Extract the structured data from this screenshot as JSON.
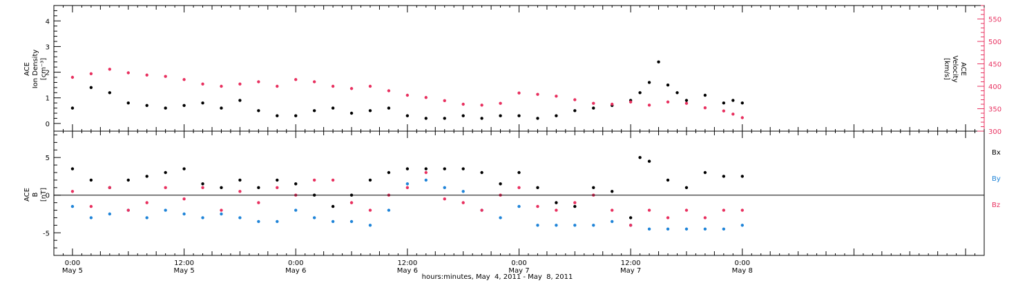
{
  "colors": {
    "black": "#000000",
    "pink": "#e8305f",
    "blue": "#1f84d8",
    "background": "#ffffff"
  },
  "x_axis": {
    "title": "hours:minutes, May  4, 2011 - May  8, 2011",
    "range_hours": [
      -2,
      98
    ],
    "ticks": [
      {
        "h": 0,
        "time": "0:00",
        "date": "May 5"
      },
      {
        "h": 12,
        "time": "12:00",
        "date": "May 5"
      },
      {
        "h": 24,
        "time": "0:00",
        "date": "May 6"
      },
      {
        "h": 36,
        "time": "12:00",
        "date": "May 6"
      },
      {
        "h": 48,
        "time": "0:00",
        "date": "May 7"
      },
      {
        "h": 60,
        "time": "12:00",
        "date": "May 7"
      },
      {
        "h": 72,
        "time": "0:00",
        "date": "May 8"
      }
    ]
  },
  "top_panel": {
    "ylabel_line1": "ACE",
    "ylabel_line2": "Ion Density",
    "ylabel_unit": "[cm⁻³]",
    "right_label_line1": "ACE",
    "right_label_line2": "Velocity",
    "right_label_unit": "[km/s]"
  },
  "bottom_panel": {
    "ylabel_line1": "ACE",
    "ylabel_line2": "B",
    "ylabel_unit": "[nT]",
    "legend": [
      {
        "label": "Bx",
        "color": "#000000"
      },
      {
        "label": "By",
        "color": "#1f84d8"
      },
      {
        "label": "Bz",
        "color": "#e8305f"
      }
    ]
  },
  "chart_data": [
    {
      "type": "scatter",
      "title": "",
      "xlabel": "hours:minutes, May  4, 2011 - May  8, 2011",
      "ylabel": "ACE Ion Density [cm⁻³]",
      "y2label": "ACE Velocity [km/s]",
      "xlim": [
        -2,
        98
      ],
      "ylim": [
        -0.3,
        4.6
      ],
      "y2lim": [
        300,
        580
      ],
      "y_ticks": [
        0,
        1,
        2,
        3,
        4
      ],
      "y2_ticks": [
        300,
        350,
        400,
        450,
        500,
        550
      ],
      "series": [
        {
          "name": "Ion Density",
          "axis": "left",
          "color": "#000000",
          "x": [
            0,
            2,
            4,
            6,
            8,
            10,
            12,
            14,
            16,
            18,
            20,
            22,
            24,
            26,
            28,
            30,
            32,
            34,
            36,
            38,
            40,
            42,
            44,
            46,
            48,
            50,
            52,
            54,
            56,
            58,
            60,
            61,
            62,
            63,
            64,
            65,
            66,
            68,
            70,
            71,
            72
          ],
          "y": [
            0.6,
            1.4,
            1.2,
            0.8,
            0.7,
            0.6,
            0.7,
            0.8,
            0.6,
            0.9,
            0.5,
            0.3,
            0.3,
            0.5,
            0.6,
            0.4,
            0.5,
            0.6,
            0.3,
            0.2,
            0.2,
            0.3,
            0.2,
            0.3,
            0.3,
            0.2,
            0.3,
            0.5,
            0.6,
            0.7,
            0.9,
            1.2,
            1.6,
            2.4,
            1.5,
            1.2,
            0.9,
            1.1,
            0.8,
            0.9,
            0.8
          ]
        },
        {
          "name": "Velocity",
          "axis": "right",
          "color": "#e8305f",
          "x": [
            0,
            2,
            4,
            6,
            8,
            10,
            12,
            14,
            16,
            18,
            20,
            22,
            24,
            26,
            28,
            30,
            32,
            34,
            36,
            38,
            40,
            42,
            44,
            46,
            48,
            50,
            52,
            54,
            56,
            58,
            60,
            62,
            64,
            66,
            68,
            70,
            71,
            72
          ],
          "y": [
            420,
            428,
            438,
            430,
            425,
            422,
            415,
            405,
            400,
            405,
            410,
            400,
            415,
            410,
            400,
            395,
            400,
            390,
            380,
            375,
            368,
            360,
            358,
            362,
            385,
            382,
            378,
            370,
            362,
            360,
            365,
            358,
            365,
            362,
            352,
            345,
            338,
            330
          ]
        }
      ]
    },
    {
      "type": "scatter",
      "title": "",
      "xlabel": "hours:minutes, May  4, 2011 - May  8, 2011",
      "ylabel": "ACE B [nT]",
      "xlim": [
        -2,
        98
      ],
      "ylim": [
        -8,
        8.5
      ],
      "y_ticks": [
        -5,
        0,
        5
      ],
      "series": [
        {
          "name": "Bx",
          "color": "#000000",
          "x": [
            0,
            2,
            4,
            6,
            8,
            10,
            12,
            14,
            16,
            18,
            20,
            22,
            24,
            26,
            28,
            30,
            32,
            34,
            36,
            38,
            40,
            42,
            44,
            46,
            48,
            50,
            52,
            54,
            56,
            58,
            60,
            61,
            62,
            64,
            66,
            68,
            70,
            72
          ],
          "y": [
            3.5,
            2,
            1,
            2,
            2.5,
            3,
            3.5,
            1.5,
            1,
            2,
            1,
            2,
            1.5,
            0,
            -1.5,
            0,
            2,
            3,
            3.5,
            3.5,
            3.5,
            3.5,
            3,
            1.5,
            3,
            1,
            -1,
            -1.5,
            1,
            0.5,
            -3,
            5,
            4.5,
            2,
            1,
            3,
            2.5,
            2.5
          ]
        },
        {
          "name": "By",
          "color": "#1f84d8",
          "x": [
            0,
            2,
            4,
            6,
            8,
            10,
            12,
            14,
            16,
            18,
            20,
            22,
            24,
            26,
            28,
            30,
            32,
            34,
            36,
            38,
            40,
            42,
            44,
            46,
            48,
            50,
            52,
            54,
            56,
            58,
            60,
            62,
            64,
            66,
            68,
            70,
            72
          ],
          "y": [
            -1.5,
            -3,
            -2.5,
            -2,
            -3,
            -2,
            -2.5,
            -3,
            -2.5,
            -3,
            -3.5,
            -3.5,
            -2,
            -3,
            -3.5,
            -3.5,
            -4,
            -2,
            1.5,
            2,
            1,
            0.5,
            -2,
            -3,
            -1.5,
            -4,
            -4,
            -4,
            -4,
            -3.5,
            -4,
            -4.5,
            -4.5,
            -4.5,
            -4.5,
            -4.5,
            -4
          ]
        },
        {
          "name": "Bz",
          "color": "#e8305f",
          "x": [
            0,
            2,
            4,
            6,
            8,
            10,
            12,
            14,
            16,
            18,
            20,
            22,
            24,
            26,
            28,
            30,
            32,
            34,
            36,
            38,
            40,
            42,
            44,
            46,
            48,
            50,
            52,
            54,
            56,
            58,
            60,
            62,
            64,
            66,
            68,
            70,
            72
          ],
          "y": [
            0.5,
            -1.5,
            1,
            -2,
            -1,
            1,
            -0.5,
            1,
            -2,
            0.5,
            -1,
            1,
            0,
            2,
            2,
            -1,
            -2,
            0,
            1,
            3,
            -0.5,
            -1,
            -2,
            0,
            1,
            -1.5,
            -2,
            -1,
            0,
            -2,
            -4,
            -2,
            -3,
            -2,
            -3,
            -2,
            -2
          ]
        }
      ]
    }
  ]
}
